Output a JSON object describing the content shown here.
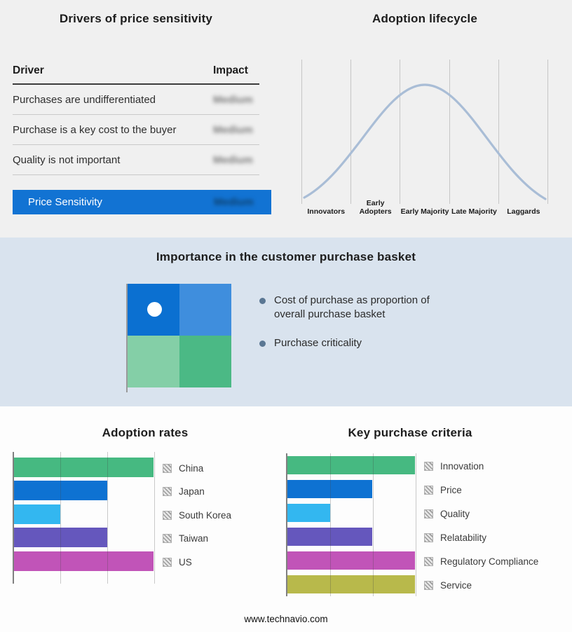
{
  "drivers_panel": {
    "title": "Drivers of price sensitivity",
    "columns": {
      "driver": "Driver",
      "impact": "Impact"
    },
    "rows": [
      {
        "driver": "Purchases are undifferentiated",
        "impact": "Medium"
      },
      {
        "driver": "Purchase is a key cost to the buyer",
        "impact": "Medium"
      },
      {
        "driver": "Quality is not important",
        "impact": "Medium"
      }
    ],
    "highlight": {
      "driver": "Price Sensitivity",
      "impact": "Medium"
    },
    "highlight_color": "#1273d3"
  },
  "lifecycle_panel": {
    "title": "Adoption lifecycle",
    "curve_color": "#a9bdd6"
  },
  "basket_panel": {
    "title": "Importance in the customer purchase basket",
    "bullets": [
      "Cost of purchase as proportion of overall purchase basket",
      "Purchase criticality"
    ],
    "quadrant_colors": [
      "#0b70d1",
      "#3f8edd",
      "#84cfa7",
      "#4bb985"
    ],
    "marker_color": "#ffffff",
    "bullet_color": "#5a7793"
  },
  "footer": {
    "url": "www.technavio.com"
  },
  "chart_data": [
    {
      "type": "bar",
      "title": "Adoption rates",
      "orientation": "horizontal",
      "categories": [
        "China",
        "Japan",
        "South Korea",
        "Taiwan",
        "US"
      ],
      "values": [
        3,
        2,
        1,
        2,
        3
      ],
      "xlim": [
        0,
        3
      ],
      "grid": true,
      "legend_position": "right",
      "colors": [
        "#46b981",
        "#0e72d2",
        "#33b7f0",
        "#6557bd",
        "#c154b8"
      ]
    },
    {
      "type": "bar",
      "title": "Key purchase criteria",
      "orientation": "horizontal",
      "categories": [
        "Innovation",
        "Price",
        "Quality",
        "Relatability",
        "Regulatory Compliance",
        "Service"
      ],
      "values": [
        3,
        2,
        1,
        2,
        3,
        3
      ],
      "xlim": [
        0,
        3
      ],
      "grid": true,
      "legend_position": "right",
      "colors": [
        "#46b981",
        "#0e72d2",
        "#33b7f0",
        "#6557bd",
        "#c154b8",
        "#b8b94b"
      ]
    },
    {
      "type": "line",
      "title": "Adoption lifecycle",
      "categories": [
        "Innovators",
        "Early Adopters",
        "Early Majority",
        "Late Majority",
        "Laggards"
      ],
      "values": [
        0.08,
        0.55,
        1.0,
        0.55,
        0.08
      ],
      "grid": true,
      "description": "bell-shaped adoption lifecycle curve across five adopter stages"
    }
  ]
}
